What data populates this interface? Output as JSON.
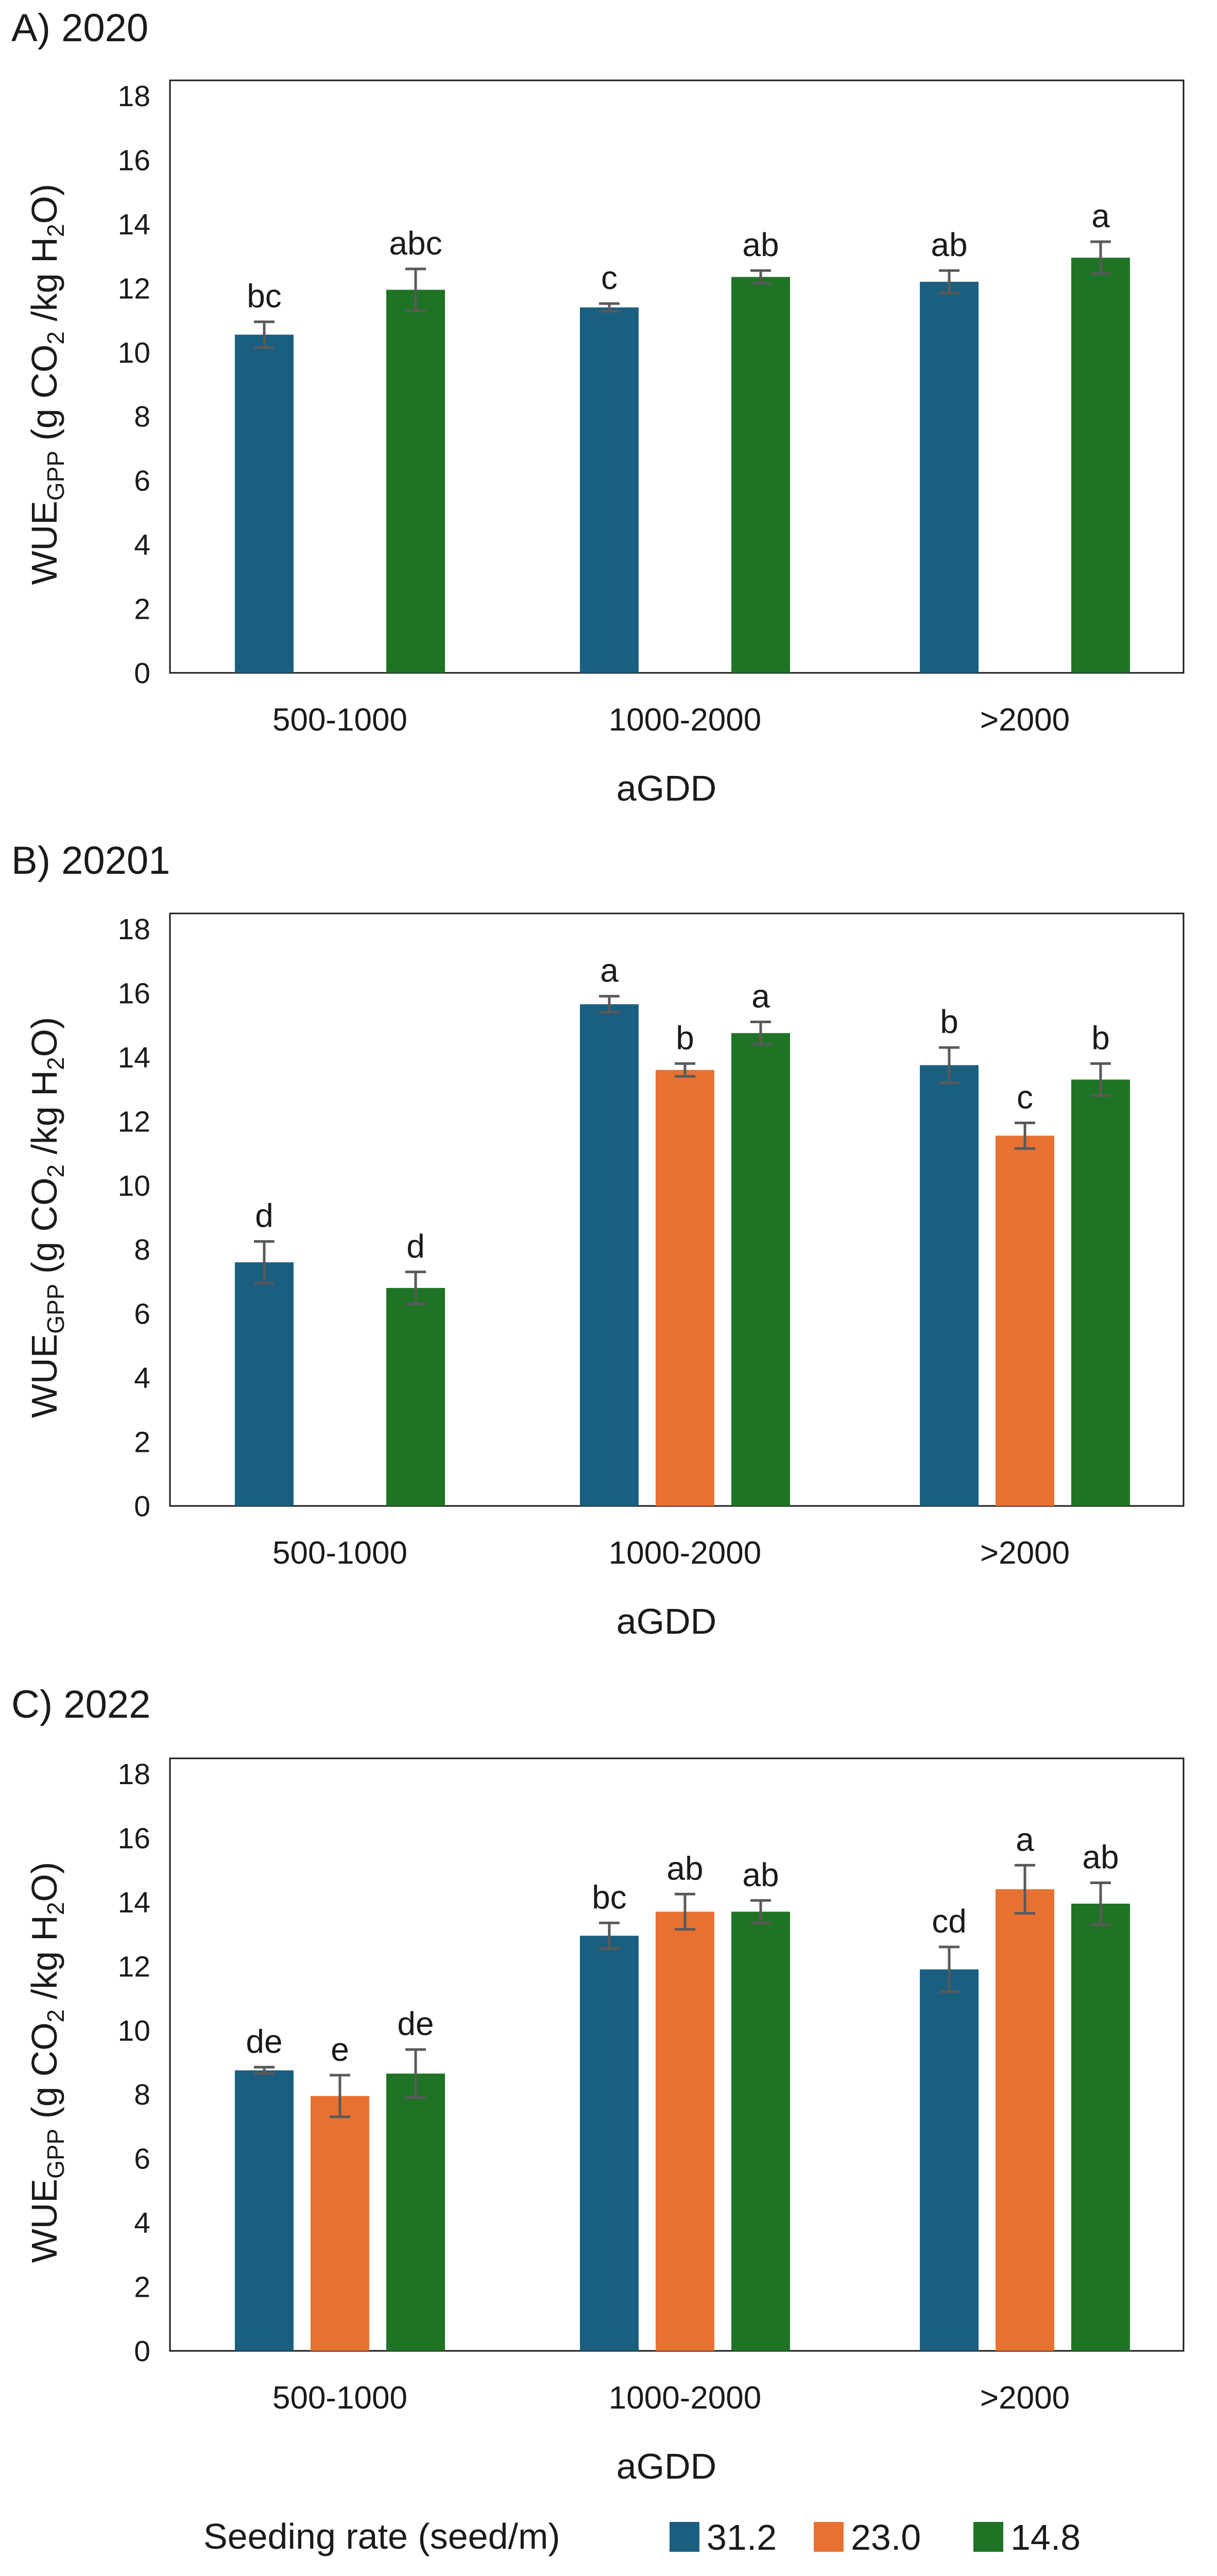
{
  "chart_data": [
    {
      "type": "bar",
      "panel_title": "A) 2020",
      "categories": [
        "500-1000",
        "1000-2000",
        ">2000"
      ],
      "xlabel": "aGDD",
      "ylabel": "WUE",
      "ylabel_sub": "GPP",
      "ylabel_rest_1": " (g CO",
      "ylabel_sub2": "2",
      "ylabel_rest_2": " /kg H",
      "ylabel_sub3": "2",
      "ylabel_rest_3": "O)",
      "ylim": [
        0,
        18
      ],
      "yticks": [
        "0",
        "2",
        "4",
        "6",
        "8",
        "10",
        "12",
        "14",
        "16",
        "18"
      ],
      "series": [
        {
          "name": "31.2",
          "values": [
            10.55,
            11.4,
            12.2
          ],
          "errors": [
            0.4,
            0.12,
            0.35
          ],
          "letters": [
            "bc",
            "c",
            "ab"
          ]
        },
        {
          "name": "23.0",
          "values": [
            null,
            null,
            null
          ],
          "errors": [
            null,
            null,
            null
          ],
          "letters": [
            null,
            null,
            null
          ]
        },
        {
          "name": "14.8",
          "values": [
            11.95,
            12.35,
            12.95
          ],
          "errors": [
            0.65,
            0.2,
            0.5
          ],
          "letters": [
            "abc",
            "ab",
            "a"
          ]
        }
      ]
    },
    {
      "type": "bar",
      "panel_title": "B) 20201",
      "categories": [
        "500-1000",
        "1000-2000",
        ">2000"
      ],
      "xlabel": "aGDD",
      "ylabel": "WUE",
      "ylabel_sub": "GPP",
      "ylabel_rest_1": " (g CO",
      "ylabel_sub2": "2",
      "ylabel_rest_2": " /kg H",
      "ylabel_sub3": "2",
      "ylabel_rest_3": "O)",
      "ylim": [
        0,
        18
      ],
      "yticks": [
        "0",
        "2",
        "4",
        "6",
        "8",
        "10",
        "12",
        "14",
        "16",
        "18"
      ],
      "series": [
        {
          "name": "31.2",
          "values": [
            7.6,
            15.65,
            13.75
          ],
          "errors": [
            0.65,
            0.25,
            0.55
          ],
          "letters": [
            "d",
            "a",
            "b"
          ]
        },
        {
          "name": "23.0",
          "values": [
            null,
            13.6,
            11.55
          ],
          "errors": [
            null,
            0.2,
            0.4
          ],
          "letters": [
            null,
            "b",
            "c"
          ]
        },
        {
          "name": "14.8",
          "values": [
            6.8,
            14.75,
            13.3
          ],
          "errors": [
            0.5,
            0.35,
            0.5
          ],
          "letters": [
            "d",
            "a",
            "b"
          ]
        }
      ]
    },
    {
      "type": "bar",
      "panel_title": "C) 2022",
      "categories": [
        "500-1000",
        "1000-2000",
        ">2000"
      ],
      "xlabel": "aGDD",
      "ylabel": "WUE",
      "ylabel_sub": "GPP",
      "ylabel_rest_1": " (g CO",
      "ylabel_sub2": "2",
      "ylabel_rest_2": " /kg H",
      "ylabel_sub3": "2",
      "ylabel_rest_3": "O)",
      "ylim": [
        0,
        18
      ],
      "yticks": [
        "0",
        "2",
        "4",
        "6",
        "8",
        "10",
        "12",
        "14",
        "16",
        "18"
      ],
      "series": [
        {
          "name": "31.2",
          "values": [
            8.75,
            12.95,
            11.9
          ],
          "errors": [
            0.1,
            0.4,
            0.7
          ],
          "letters": [
            "de",
            "bc",
            "cd"
          ]
        },
        {
          "name": "23.0",
          "values": [
            7.95,
            13.7,
            14.4
          ],
          "errors": [
            0.65,
            0.55,
            0.75
          ],
          "letters": [
            "e",
            "ab",
            "a"
          ]
        },
        {
          "name": "14.8",
          "values": [
            8.65,
            13.7,
            13.95
          ],
          "errors": [
            0.75,
            0.35,
            0.65
          ],
          "letters": [
            "de",
            "ab",
            "ab"
          ]
        }
      ]
    }
  ],
  "legend": {
    "title": "Seeding rate (seed/m)",
    "items": [
      {
        "label": "31.2",
        "color": "#1a5f7f"
      },
      {
        "label": "23.0",
        "color": "#e87132"
      },
      {
        "label": "14.8",
        "color": "#1f7325"
      }
    ]
  },
  "colors": {
    "series_1": "#1a5f7f",
    "series_2": "#e87132",
    "series_3": "#1f7325",
    "error_bar": "#595959"
  }
}
